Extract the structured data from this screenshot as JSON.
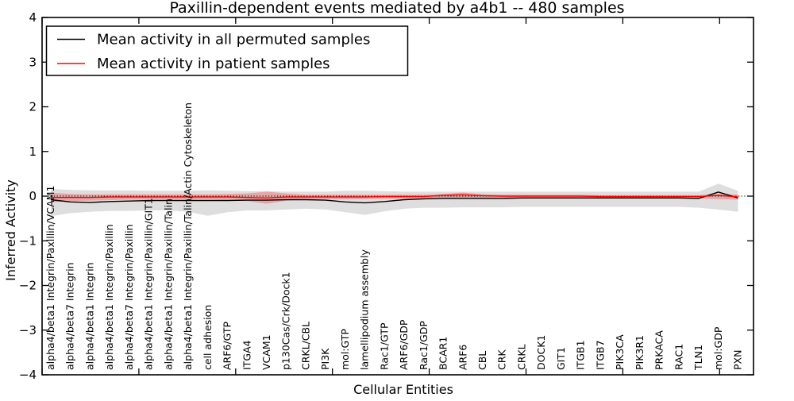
{
  "chart_data": {
    "type": "line",
    "title": "Paxillin-dependent events mediated by a4b1 -- 480 samples",
    "xlabel": "Cellular Entities",
    "ylabel": "Inferred Activity",
    "ylim": [
      -4,
      4
    ],
    "xlim": [
      0,
      36.75
    ],
    "y_ticks": [
      4,
      3,
      2,
      1,
      0,
      -1,
      -2,
      -3,
      -4
    ],
    "y_tick_labels": [
      "4",
      "3",
      "2",
      "1",
      "0",
      "−1",
      "−2",
      "−3",
      "−4"
    ],
    "x_numeric_ticks": [
      0,
      5,
      10,
      15,
      20,
      25,
      30,
      35
    ],
    "zero_line_style": "dotted",
    "grid": false,
    "legend_position": "upper left",
    "categories": [
      "alpha4/beta1 Integrin/Paxillin/VCAM1",
      "alpha4/beta7 Integrin",
      "alpha4/beta1 Integrin",
      "alpha4/beta1 Integrin/Paxillin",
      "alpha4/beta7 Integrin/Paxillin",
      "alpha4/beta1 Integrin/Paxillin/GIT1",
      "alpha4/beta1 Integrin/Paxillin/Talin",
      "alpha4/beta1 Integrin/Paxillin/Talin/Actin Cytoskeleton",
      "cell adhesion",
      "ARF6/GTP",
      "ITGA4",
      "VCAM1",
      "p130Cas/Crk/Dock1",
      "CRKL/CBL",
      "PI3K",
      "mol:GTP",
      "lamellipodium assembly",
      "Rac1/GTP",
      "ARF6/GDP",
      "Rac1/GDP",
      "BCAR1",
      "ARF6",
      "CBL",
      "CRK",
      "CRKL",
      "DOCK1",
      "GIT1",
      "ITGB1",
      "ITGB7",
      "PIK3CA",
      "PIK3R1",
      "PRKACA",
      "RAC1",
      "TLN1",
      "mol:GDP",
      "PXN"
    ],
    "series": [
      {
        "name": "Mean activity in all permuted samples",
        "color": "#000000",
        "band_color": "rgba(0,0,0,0.13)",
        "values": [
          -0.08,
          -0.13,
          -0.14,
          -0.12,
          -0.11,
          -0.1,
          -0.1,
          -0.1,
          -0.1,
          -0.1,
          -0.09,
          -0.09,
          -0.08,
          -0.08,
          -0.09,
          -0.13,
          -0.15,
          -0.12,
          -0.08,
          -0.06,
          -0.05,
          -0.05,
          -0.05,
          -0.05,
          -0.04,
          -0.04,
          -0.04,
          -0.04,
          -0.04,
          -0.04,
          -0.04,
          -0.04,
          -0.04,
          -0.05,
          0.09,
          -0.04
        ],
        "band_upper": [
          0.16,
          0.14,
          0.13,
          0.13,
          0.13,
          0.12,
          0.12,
          0.12,
          0.13,
          0.12,
          0.11,
          0.11,
          0.1,
          0.1,
          0.1,
          0.12,
          0.12,
          0.11,
          0.1,
          0.1,
          0.1,
          0.1,
          0.1,
          0.1,
          0.1,
          0.1,
          0.1,
          0.1,
          0.1,
          0.1,
          0.1,
          0.1,
          0.1,
          0.1,
          0.28,
          0.12
        ],
        "band_lower": [
          -0.45,
          -0.38,
          -0.35,
          -0.33,
          -0.33,
          -0.32,
          -0.32,
          -0.35,
          -0.44,
          -0.36,
          -0.32,
          -0.32,
          -0.3,
          -0.28,
          -0.3,
          -0.36,
          -0.42,
          -0.34,
          -0.28,
          -0.26,
          -0.26,
          -0.25,
          -0.25,
          -0.25,
          -0.24,
          -0.24,
          -0.24,
          -0.24,
          -0.24,
          -0.24,
          -0.24,
          -0.24,
          -0.24,
          -0.26,
          -0.3,
          -0.35
        ]
      },
      {
        "name": "Mean activity in patient samples",
        "color": "#ff0000",
        "band_color": "rgba(255,0,0,0.25)",
        "values": [
          -0.03,
          -0.03,
          -0.03,
          -0.02,
          -0.02,
          -0.02,
          -0.02,
          -0.02,
          -0.02,
          -0.02,
          -0.03,
          -0.04,
          -0.02,
          -0.02,
          -0.02,
          -0.02,
          -0.02,
          -0.01,
          -0.01,
          -0.01,
          0.02,
          0.03,
          0.01,
          0.0,
          0.0,
          0.0,
          0.0,
          0.0,
          -0.01,
          -0.01,
          -0.01,
          -0.01,
          -0.01,
          -0.01,
          0.02,
          -0.02
        ],
        "band_upper": [
          0.08,
          0.05,
          0.04,
          0.04,
          0.04,
          0.04,
          0.04,
          0.04,
          0.04,
          0.05,
          0.06,
          0.1,
          0.06,
          0.03,
          0.03,
          0.03,
          0.03,
          0.03,
          0.03,
          0.03,
          0.05,
          0.08,
          0.04,
          0.03,
          0.03,
          0.03,
          0.03,
          0.03,
          0.02,
          0.02,
          0.02,
          0.02,
          0.02,
          0.02,
          0.05,
          0.03
        ],
        "band_lower": [
          -0.14,
          -0.11,
          -0.1,
          -0.09,
          -0.08,
          -0.08,
          -0.08,
          -0.08,
          -0.08,
          -0.09,
          -0.11,
          -0.17,
          -0.1,
          -0.07,
          -0.07,
          -0.07,
          -0.07,
          -0.06,
          -0.06,
          -0.05,
          -0.05,
          -0.04,
          -0.05,
          -0.05,
          -0.05,
          -0.05,
          -0.05,
          -0.05,
          -0.05,
          -0.05,
          -0.05,
          -0.05,
          -0.05,
          -0.05,
          -0.07,
          -0.08
        ]
      }
    ]
  },
  "colors": {
    "background": "#ffffff",
    "frame": "#000000",
    "permuted_line": "#000000",
    "patient_line": "#ff0000"
  }
}
